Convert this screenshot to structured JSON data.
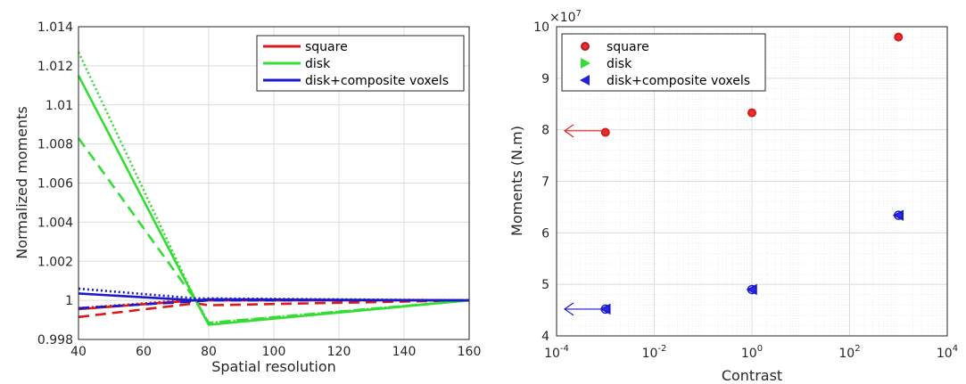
{
  "chart_data": [
    {
      "type": "line",
      "xlabel": "Spatial resolution",
      "ylabel": "Normalized moments",
      "xlim": [
        40,
        160
      ],
      "ylim": [
        0.998,
        1.014
      ],
      "xticks": [
        "40",
        "60",
        "80",
        "100",
        "120",
        "140",
        "160"
      ],
      "yticks": [
        "0.998",
        "1",
        "1.002",
        "1.004",
        "1.006",
        "1.008",
        "1.01",
        "1.012",
        "1.014"
      ],
      "grid": true,
      "legend_position": "top-right",
      "legend": [
        "square",
        "disk",
        "disk+composite voxels"
      ],
      "colors": {
        "square": "#d91a1a",
        "disk": "#33dd33",
        "disk+composite voxels": "#1a1acc"
      },
      "series": [
        {
          "name": "square",
          "style": "solid",
          "x": [
            40,
            76,
            80,
            160
          ],
          "y": [
            0.99955,
            1.0,
            1.0,
            1.0
          ]
        },
        {
          "name": "square",
          "style": "dashed",
          "x": [
            40,
            76,
            80,
            160
          ],
          "y": [
            0.99915,
            0.99985,
            0.99975,
            1.0
          ]
        },
        {
          "name": "square",
          "style": "dotted",
          "x": [
            40,
            76,
            80,
            160
          ],
          "y": [
            0.9996,
            1.00005,
            1.0,
            1.0
          ]
        },
        {
          "name": "disk",
          "style": "solid",
          "x": [
            40,
            76,
            80,
            160
          ],
          "y": [
            1.0115,
            1.0,
            0.99875,
            1.0
          ]
        },
        {
          "name": "disk",
          "style": "dashed",
          "x": [
            40,
            76,
            80,
            160
          ],
          "y": [
            1.0083,
            1.0,
            0.99885,
            1.0
          ]
        },
        {
          "name": "disk",
          "style": "dotted",
          "x": [
            40,
            76,
            80,
            160
          ],
          "y": [
            1.0127,
            1.0,
            0.99885,
            1.0
          ]
        },
        {
          "name": "disk+composite voxels",
          "style": "solid",
          "x": [
            40,
            76,
            80,
            160
          ],
          "y": [
            1.00035,
            1.0,
            1.00005,
            1.0
          ]
        },
        {
          "name": "disk+composite voxels",
          "style": "dashed",
          "x": [
            40,
            76,
            80,
            160
          ],
          "y": [
            0.9996,
            0.99995,
            1.0,
            1.0
          ]
        },
        {
          "name": "disk+composite voxels",
          "style": "dotted",
          "x": [
            40,
            76,
            80,
            160
          ],
          "y": [
            1.0006,
            1.0001,
            1.0001,
            1.0
          ]
        }
      ]
    },
    {
      "type": "scatter",
      "xlabel": "Contrast",
      "ylabel": "Moments (N.m)",
      "xscale": "log",
      "xlim": [
        0.0001,
        10000
      ],
      "ylim": [
        4,
        10
      ],
      "y_multiplier": "×10^7",
      "xticks": [
        {
          "base": "10",
          "exp": "-4"
        },
        {
          "base": "10",
          "exp": "-2"
        },
        {
          "base": "10",
          "exp": "0"
        },
        {
          "base": "10",
          "exp": "2"
        },
        {
          "base": "10",
          "exp": "4"
        }
      ],
      "yticks": [
        "4",
        "5",
        "6",
        "7",
        "8",
        "9",
        "10"
      ],
      "exponent_label": {
        "base": "×10",
        "exp": "7"
      },
      "grid": true,
      "legend_position": "top-left",
      "legend": [
        {
          "name": "square",
          "marker": "circle"
        },
        {
          "name": "disk",
          "marker": "triangle-right"
        },
        {
          "name": "disk+composite voxels",
          "marker": "triangle-left"
        }
      ],
      "series": [
        {
          "name": "square",
          "color": "#d91a1a",
          "x": [
            0.001,
            1,
            1000
          ],
          "y": [
            7.95,
            8.33,
            9.8
          ]
        },
        {
          "name": "disk+composite voxels",
          "color": "#1a1acc",
          "x": [
            0.001,
            1,
            1000
          ],
          "y": [
            4.52,
            4.9,
            6.34
          ]
        }
      ],
      "annotations": [
        {
          "type": "arrow",
          "direction": "left",
          "color": "#e02020",
          "y": 7.98
        },
        {
          "type": "arrow",
          "direction": "left",
          "color": "#1a1acc",
          "y": 4.52
        }
      ]
    }
  ]
}
